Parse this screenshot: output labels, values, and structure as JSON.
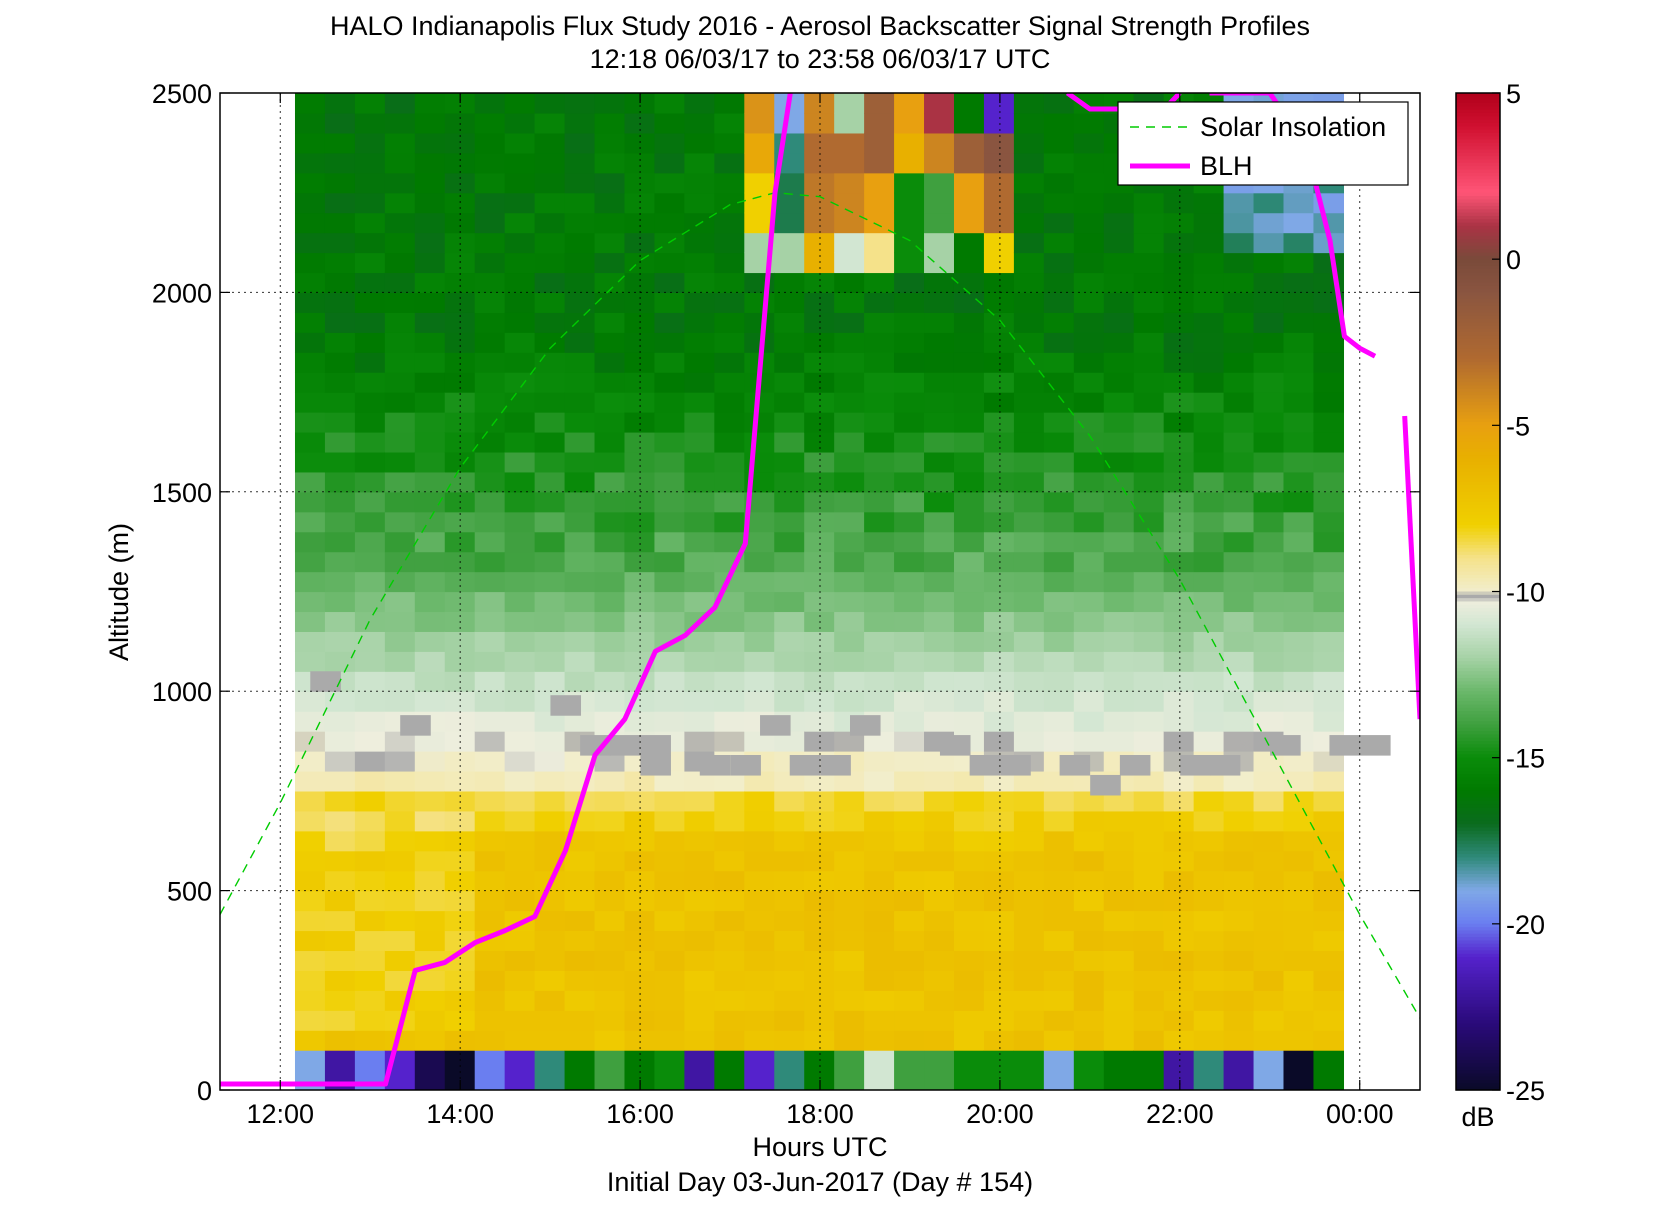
{
  "chart_data": {
    "type": "heatmap",
    "title": "HALO Indianapolis Flux Study 2016 - Aerosol Backscatter Signal Strength Profiles",
    "subtitle": "12:18 06/03/17 to 23:58 06/03/17  UTC",
    "xlabel": "Hours UTC",
    "xlabel2": "Initial Day 03-Jun-2017 (Day # 154)",
    "ylabel": "Altitude (m)",
    "x_range_hours": [
      11.33,
      24.67
    ],
    "ylim": [
      0,
      2500
    ],
    "x_ticks": [
      {
        "hour": 12,
        "label": "12:00"
      },
      {
        "hour": 14,
        "label": "14:00"
      },
      {
        "hour": 16,
        "label": "16:00"
      },
      {
        "hour": 18,
        "label": "18:00"
      },
      {
        "hour": 20,
        "label": "20:00"
      },
      {
        "hour": 22,
        "label": "22:00"
      },
      {
        "hour": 24,
        "label": "00:00"
      }
    ],
    "y_ticks": [
      0,
      500,
      1000,
      1500,
      2000,
      2500
    ],
    "y_tick_labels": [
      "0",
      "500",
      "1000",
      "1500",
      "2000",
      "2500"
    ],
    "grid": true,
    "colorbar": {
      "range": [
        -25,
        5
      ],
      "ticks": [
        5,
        0,
        -5,
        -10,
        -15,
        -20,
        -25
      ],
      "tick_labels": [
        "5",
        "0",
        "-5",
        "-10",
        "-15",
        "-20",
        "-25"
      ],
      "unit": "dB"
    },
    "profiles": {
      "hour_start": 12.33,
      "hour_step": 0.333,
      "count": 35,
      "altitude_bottom": 60,
      "altitude_step": 50,
      "first_bin_height": 100
    },
    "series": [
      {
        "name": "Solar Insolation",
        "style": "dashed",
        "color": "#00cc00",
        "x": [
          11.33,
          12.0,
          13.0,
          14.0,
          15.0,
          16.0,
          17.0,
          17.5,
          18.0,
          19.0,
          20.0,
          21.0,
          22.0,
          23.0,
          24.0,
          24.67
        ],
        "y": [
          440,
          720,
          1180,
          1560,
          1860,
          2080,
          2220,
          2250,
          2240,
          2130,
          1930,
          1640,
          1280,
          860,
          440,
          180
        ]
      },
      {
        "name": "BLH",
        "style": "solid",
        "color": "#ff00ff",
        "x": [
          11.33,
          13.17,
          13.5,
          13.83,
          14.17,
          14.5,
          14.83,
          15.17,
          15.5,
          15.83,
          16.17,
          16.5,
          16.83,
          17.17,
          17.33,
          17.5,
          17.67
        ],
        "y": [
          15,
          15,
          300,
          320,
          370,
          400,
          435,
          600,
          840,
          930,
          1100,
          1140,
          1210,
          1370,
          1800,
          2250,
          2500
        ],
        "segments": [
          {
            "x": [
              20.75,
              21.0,
              21.5,
              21.83,
              22.0
            ],
            "y": [
              2500,
              2460,
              2460,
              2460,
              2500
            ]
          },
          {
            "x": [
              22.33,
              22.67,
              23.0,
              23.33,
              23.5,
              23.67,
              23.83,
              24.0,
              24.17
            ],
            "y": [
              2500,
              2500,
              2500,
              2390,
              2280,
              2130,
              1890,
              1860,
              1840
            ]
          },
          {
            "x": [
              24.5,
              24.67
            ],
            "y": [
              1690,
              930
            ]
          }
        ]
      }
    ],
    "legend": {
      "placement": "top-right",
      "entries": [
        "Solar Insolation",
        "BLH"
      ]
    },
    "gray_cells": [
      {
        "hour": 12.5,
        "alt": 1000
      },
      {
        "hour": 13.5,
        "alt": 890
      },
      {
        "hour": 15.17,
        "alt": 940
      },
      {
        "hour": 15.5,
        "alt": 840
      },
      {
        "hour": 15.83,
        "alt": 840
      },
      {
        "hour": 16.17,
        "alt": 790
      },
      {
        "hour": 16.17,
        "alt": 840
      },
      {
        "hour": 16.83,
        "alt": 790
      },
      {
        "hour": 17.17,
        "alt": 790
      },
      {
        "hour": 17.5,
        "alt": 890
      },
      {
        "hour": 17.83,
        "alt": 790
      },
      {
        "hour": 18.17,
        "alt": 790
      },
      {
        "hour": 18.5,
        "alt": 890
      },
      {
        "hour": 19.5,
        "alt": 840
      },
      {
        "hour": 19.83,
        "alt": 790
      },
      {
        "hour": 20.17,
        "alt": 790
      },
      {
        "hour": 20.83,
        "alt": 790
      },
      {
        "hour": 21.17,
        "alt": 740
      },
      {
        "hour": 21.5,
        "alt": 790
      },
      {
        "hour": 22.17,
        "alt": 790
      },
      {
        "hour": 22.5,
        "alt": 790
      },
      {
        "hour": 23.17,
        "alt": 840
      },
      {
        "hour": 23.83,
        "alt": 840
      },
      {
        "hour": 24.17,
        "alt": 840
      }
    ]
  }
}
